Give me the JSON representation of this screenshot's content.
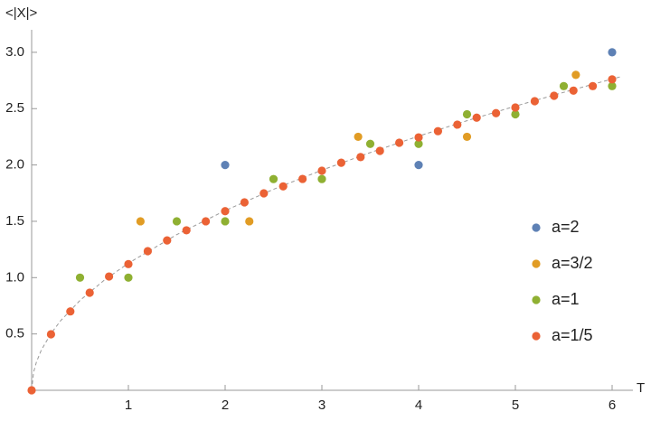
{
  "chart_data": {
    "type": "scatter",
    "x_label": "T",
    "y_label": "<|X|>",
    "xlim": [
      0,
      6.14
    ],
    "ylim": [
      0,
      3.2
    ],
    "xticks": [
      1,
      2,
      3,
      4,
      5,
      6
    ],
    "yticks": [
      0.5,
      {
        "value": 1,
        "label": "1.0"
      },
      1.5,
      {
        "value": 2,
        "label": "2.0"
      },
      2.5,
      {
        "value": 3,
        "label": "3.0"
      }
    ],
    "legend": "right",
    "series": [
      {
        "name": "a=2",
        "color": "#5e81b5",
        "x": [
          2,
          4,
          6
        ],
        "values": [
          2,
          2,
          3
        ]
      },
      {
        "name": "a=3/2",
        "color": "#e19c24",
        "x": [
          1.125,
          2.25,
          3.375,
          4.5,
          5.625
        ],
        "values": [
          1.5,
          1.5,
          2.25,
          2.25,
          2.8
        ]
      },
      {
        "name": "a=1",
        "color": "#8fb032",
        "x": [
          0.5,
          1,
          1.5,
          2,
          2.5,
          3,
          3.5,
          4,
          4.5,
          5,
          5.5,
          6
        ],
        "values": [
          1,
          1,
          1.5,
          1.5,
          1.875,
          1.875,
          2.1875,
          2.1875,
          2.45,
          2.45,
          2.7,
          2.7
        ]
      },
      {
        "name": "a=1/5",
        "color": "#eb6235",
        "x": [
          0,
          0.2,
          0.4,
          0.6,
          0.8,
          1,
          1.2,
          1.4,
          1.6,
          1.8,
          2,
          2.2,
          2.4,
          2.6,
          2.8,
          3,
          3.2,
          3.4,
          3.6,
          3.8,
          4,
          4.2,
          4.4,
          4.6,
          4.8,
          5,
          5.2,
          5.4,
          5.6,
          5.8,
          6
        ],
        "values": [
          0,
          0.497,
          0.7,
          0.866,
          1.01,
          1.12,
          1.235,
          1.33,
          1.42,
          1.5,
          1.59,
          1.668,
          1.748,
          1.81,
          1.876,
          1.949,
          2.02,
          2.07,
          2.125,
          2.197,
          2.245,
          2.3,
          2.358,
          2.42,
          2.46,
          2.51,
          2.566,
          2.614,
          2.66,
          2.7,
          2.76
        ]
      }
    ],
    "fit_curve": {
      "color": "#999999",
      "x": [
        0,
        0.02,
        0.05,
        0.1,
        0.2,
        0.3,
        0.5,
        0.75,
        1,
        1.5,
        2,
        2.5,
        3,
        3.5,
        4,
        4.5,
        5,
        5.5,
        6,
        6.1
      ],
      "values": [
        0,
        0.16,
        0.252,
        0.357,
        0.504,
        0.618,
        0.798,
        0.977,
        1.128,
        1.382,
        1.595,
        1.784,
        1.954,
        2.11,
        2.256,
        2.393,
        2.522,
        2.645,
        2.763,
        2.786
      ]
    }
  }
}
